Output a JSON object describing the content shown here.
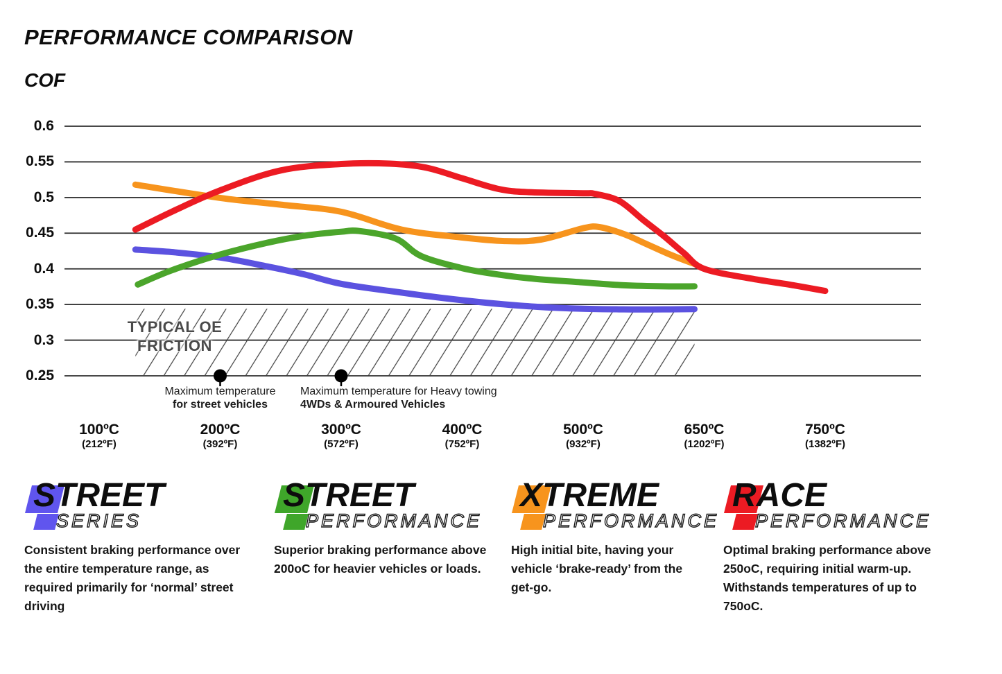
{
  "header": {
    "title": "PERFORMANCE COMPARISON",
    "axis_title": "COF"
  },
  "chart_data": {
    "type": "line",
    "title": "PERFORMANCE COMPARISON",
    "ylabel": "COF",
    "xlabel": "",
    "ylim": [
      0.25,
      0.6
    ],
    "grid": true,
    "legend_position": "bottom",
    "y_ticks": [
      "0.6",
      "0.55",
      "0.5",
      "0.45",
      "0.4",
      "0.35",
      "0.3",
      "0.25"
    ],
    "y_tick_values": [
      0.6,
      0.55,
      0.5,
      0.45,
      0.4,
      0.35,
      0.3,
      0.25
    ],
    "x_ticks": [
      {
        "temp": 100,
        "c": "100ºC",
        "f": "(212ºF)"
      },
      {
        "temp": 200,
        "c": "200ºC",
        "f": "(392ºF)"
      },
      {
        "temp": 300,
        "c": "300ºC",
        "f": "(572ºF)"
      },
      {
        "temp": 400,
        "c": "400ºC",
        "f": "(752ºF)"
      },
      {
        "temp": 500,
        "c": "500ºC",
        "f": "(932ºF)"
      },
      {
        "temp": 650,
        "c": "650ºC",
        "f": "(1202ºF)"
      },
      {
        "temp": 750,
        "c": "750ºC",
        "f": "(1382ºF)"
      }
    ],
    "series": [
      {
        "name": "Street Series",
        "color": "#5B52E0",
        "points": [
          [
            130,
            0.427
          ],
          [
            160,
            0.4235
          ],
          [
            200,
            0.416
          ],
          [
            240,
            0.403
          ],
          [
            270,
            0.392
          ],
          [
            300,
            0.379
          ],
          [
            340,
            0.369
          ],
          [
            380,
            0.36
          ],
          [
            420,
            0.3525
          ],
          [
            460,
            0.347
          ],
          [
            500,
            0.344
          ],
          [
            550,
            0.3432
          ],
          [
            600,
            0.3432
          ],
          [
            638,
            0.3435
          ]
        ]
      },
      {
        "name": "Street Performance",
        "color": "#4BA52B",
        "points": [
          [
            132,
            0.378
          ],
          [
            160,
            0.398
          ],
          [
            200,
            0.42
          ],
          [
            240,
            0.437
          ],
          [
            270,
            0.4465
          ],
          [
            300,
            0.452
          ],
          [
            315,
            0.453
          ],
          [
            345,
            0.4425
          ],
          [
            366,
            0.418
          ],
          [
            400,
            0.401
          ],
          [
            430,
            0.392
          ],
          [
            460,
            0.386
          ],
          [
            500,
            0.381
          ],
          [
            550,
            0.377
          ],
          [
            600,
            0.3755
          ],
          [
            638,
            0.3755
          ]
        ]
      },
      {
        "name": "Xtreme Performance",
        "color": "#F7941D",
        "points": [
          [
            130,
            0.518
          ],
          [
            200,
            0.4995
          ],
          [
            250,
            0.49
          ],
          [
            300,
            0.48
          ],
          [
            350,
            0.455
          ],
          [
            400,
            0.444
          ],
          [
            435,
            0.439
          ],
          [
            465,
            0.441
          ],
          [
            500,
            0.457
          ],
          [
            520,
            0.4585
          ],
          [
            550,
            0.449
          ],
          [
            580,
            0.434
          ],
          [
            610,
            0.419
          ],
          [
            640,
            0.406
          ]
        ]
      },
      {
        "name": "Race Performance",
        "color": "#EC1B23",
        "points": [
          [
            130,
            0.455
          ],
          [
            160,
            0.48
          ],
          [
            200,
            0.51
          ],
          [
            250,
            0.538
          ],
          [
            300,
            0.547
          ],
          [
            340,
            0.5475
          ],
          [
            370,
            0.542
          ],
          [
            400,
            0.527
          ],
          [
            430,
            0.512
          ],
          [
            455,
            0.5075
          ],
          [
            500,
            0.506
          ],
          [
            515,
            0.505
          ],
          [
            545,
            0.495
          ],
          [
            575,
            0.468
          ],
          [
            600,
            0.446
          ],
          [
            625,
            0.422
          ],
          [
            650,
            0.4
          ],
          [
            690,
            0.386
          ],
          [
            720,
            0.378
          ],
          [
            750,
            0.369
          ]
        ]
      }
    ],
    "oe_band": {
      "label_line1": "TYPICAL OE",
      "label_line2": "FRICTION",
      "temp_range": [
        130,
        638
      ],
      "cof_top": 0.344,
      "cof_bottom": 0.25
    },
    "markers": [
      {
        "temp": 200,
        "line1": "Maximum temperature",
        "line2": "for street vehicles",
        "align": "center"
      },
      {
        "temp": 300,
        "line1": "Maximum temperature for Heavy towing",
        "line2": "4WDs & Armoured Vehicles",
        "align": "left"
      }
    ]
  },
  "legend": [
    {
      "main": "STREET",
      "sub": "SERIES",
      "color": "#6055EE",
      "description": "Consistent braking performance over the entire temperature range, as required primarily for ‘normal’ street driving"
    },
    {
      "main": "STREET",
      "sub": "PERFORMANCE",
      "color": "#3FA62A",
      "description": "Superior braking performance above 200oC for heavier vehicles or loads."
    },
    {
      "main": "XTREME",
      "sub": "PERFORMANCE",
      "color": "#F7941D",
      "description": "High initial bite, having your vehicle ‘brake-ready’ from the get-go."
    },
    {
      "main": "RACE",
      "sub": "PERFORMANCE",
      "color": "#EC1B23",
      "description": "Optimal braking performance above 250oC, requiring initial warm-up. Withstands temperatures of up to 750oC."
    }
  ]
}
